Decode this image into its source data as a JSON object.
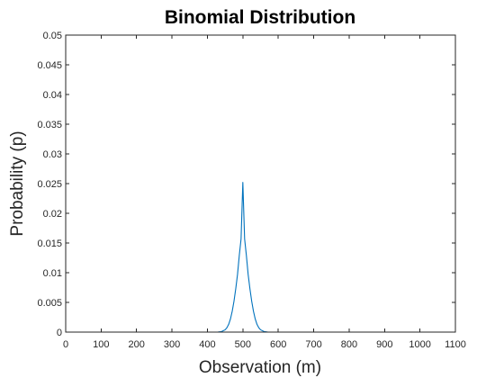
{
  "chart_data": {
    "type": "line",
    "title": "Binomial Distribution",
    "xlabel": "Observation (m)",
    "ylabel": "Probability (p)",
    "xlim": [
      0,
      1100
    ],
    "ylim": [
      0,
      0.05
    ],
    "xticks": [
      0,
      100,
      200,
      300,
      400,
      500,
      600,
      700,
      800,
      900,
      1000,
      1100
    ],
    "xtick_labels": [
      "0",
      "100",
      "200",
      "300",
      "400",
      "500",
      "600",
      "700",
      "800",
      "900",
      "1000",
      "1100"
    ],
    "yticks": [
      0,
      0.005,
      0.01,
      0.015,
      0.02,
      0.025,
      0.03,
      0.035,
      0.04,
      0.045,
      0.05
    ],
    "ytick_labels": [
      "0",
      "0.005",
      "0.01",
      "0.015",
      "0.02",
      "0.025",
      "0.03",
      "0.035",
      "0.04",
      "0.045",
      "0.05"
    ],
    "grid": false,
    "box": true,
    "line_color": "#0072BD",
    "series": [
      {
        "x": [
          0,
          100,
          200,
          300,
          400,
          430,
          440,
          450,
          455,
          460,
          465,
          470,
          475,
          480,
          485,
          490,
          495,
          500,
          505,
          510,
          515,
          520,
          525,
          530,
          535,
          540,
          545,
          550,
          560,
          570,
          600,
          700,
          800,
          900,
          1000
        ],
        "y": [
          0,
          0,
          0,
          0,
          0,
          2e-05,
          9e-05,
          0.00039,
          0.00074,
          0.0013,
          0.0022,
          0.0035,
          0.0052,
          0.0073,
          0.0097,
          0.0129,
          0.0157,
          0.0252,
          0.0157,
          0.0129,
          0.0097,
          0.0073,
          0.0052,
          0.0035,
          0.0022,
          0.0013,
          0.00074,
          0.00039,
          9e-05,
          2e-05,
          0,
          0,
          0,
          0,
          0
        ]
      }
    ]
  }
}
